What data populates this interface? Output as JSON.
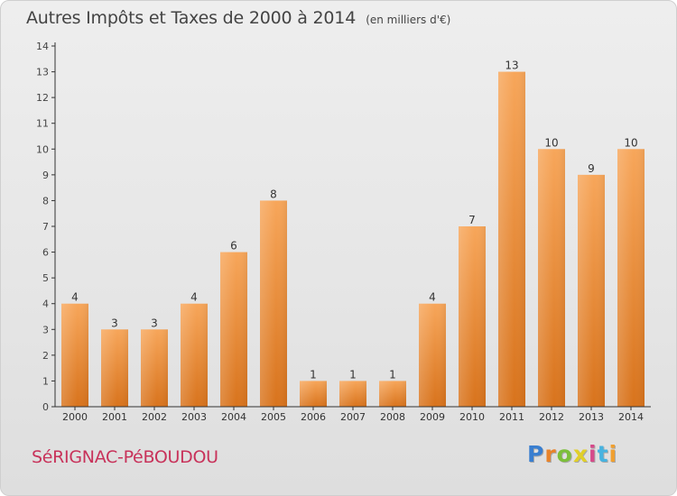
{
  "header": {
    "title": "Autres Impôts et Taxes de 2000 à 2014",
    "unit_note": "(en milliers d'€)"
  },
  "footer": {
    "commune_name": "SéRIGNAC-PéBOUDOU",
    "logo_text": "Proxiti"
  },
  "colors": {
    "bar_top": "#f7a65a",
    "bar_bottom": "#d8731c",
    "axis": "#333333",
    "commune_text": "#c8325a"
  },
  "chart_data": {
    "type": "bar",
    "title": "Autres Impôts et Taxes de 2000 à 2014",
    "subtitle": "(en milliers d'€)",
    "categories": [
      "2000",
      "2001",
      "2002",
      "2003",
      "2004",
      "2005",
      "2006",
      "2007",
      "2008",
      "2009",
      "2010",
      "2011",
      "2012",
      "2013",
      "2014"
    ],
    "values": [
      4,
      3,
      3,
      4,
      6,
      8,
      1,
      1,
      1,
      4,
      7,
      13,
      10,
      9,
      10
    ],
    "data_labels": [
      "4",
      "3",
      "3",
      "4",
      "6",
      "8",
      "1",
      "1",
      "1",
      "4",
      "7",
      "13",
      "10",
      "9",
      "10"
    ],
    "yticks": [
      "0",
      "1",
      "2",
      "3",
      "4",
      "5",
      "6",
      "7",
      "8",
      "9",
      "10",
      "11",
      "12",
      "13",
      "14"
    ],
    "ylim": [
      0,
      14
    ],
    "grid": false,
    "legend": "none"
  }
}
